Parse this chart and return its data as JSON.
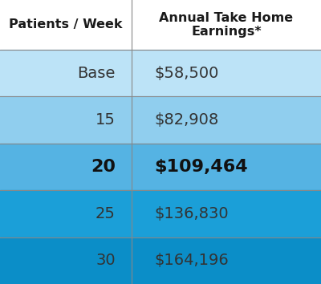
{
  "col1_header": "Patients / Week",
  "col2_header": "Annual Take Home\nEarnings*",
  "rows": [
    {
      "label": "Base",
      "value": "$58,500",
      "bold": false
    },
    {
      "label": "15",
      "value": "$82,908",
      "bold": false
    },
    {
      "label": "20",
      "value": "$109,464",
      "bold": true
    },
    {
      "label": "25",
      "value": "$136,830",
      "bold": false
    },
    {
      "label": "30",
      "value": "$164,196",
      "bold": false
    }
  ],
  "row_colors": [
    "#bce3f7",
    "#90ceee",
    "#55b3e3",
    "#1b9fd8",
    "#0b8ec8"
  ],
  "header_bg": "#ffffff",
  "header_text_color": "#1a1a1a",
  "divider_color": "#888888",
  "text_color": "#333333",
  "bold_text_color": "#111111",
  "col_split": 0.41,
  "header_fontsize": 11.5,
  "cell_fontsize": 14,
  "highlight_fontsize": 16
}
